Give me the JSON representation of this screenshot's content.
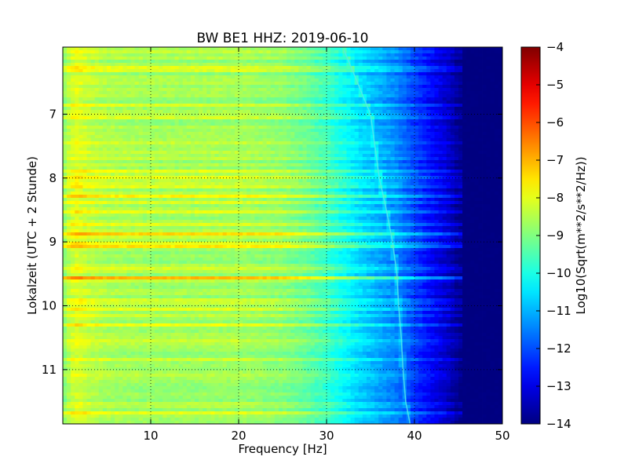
{
  "chart_data": {
    "type": "heatmap",
    "title": "BW BE1 HHZ: 2019-06-10",
    "xlabel": "Frequency [Hz]",
    "ylabel": "Lokalzeit (UTC + 2 Stunde)",
    "xlim": [
      0,
      50
    ],
    "ylim": [
      5.95,
      11.85
    ],
    "y_inverted": true,
    "x_ticks": [
      10,
      20,
      30,
      40,
      50
    ],
    "y_ticks": [
      7,
      8,
      9,
      10,
      11
    ],
    "grid": true,
    "colormap": "jet",
    "colorbar": {
      "label": "Log10(Sqrt(m**2/s**2/Hz))",
      "range": [
        -14,
        -4
      ],
      "ticks": [
        -14,
        -13,
        -12,
        -11,
        -10,
        -9,
        -8,
        -7,
        -6,
        -5,
        -4
      ]
    },
    "spectrum_profile": {
      "frequency_hz": [
        0,
        0.8,
        1.5,
        3,
        5,
        10,
        15,
        20,
        25,
        28,
        30,
        32,
        34,
        36,
        38,
        40,
        42,
        44,
        45,
        50
      ],
      "log10_amplitude": [
        -9.0,
        -8.4,
        -8.1,
        -8.4,
        -8.6,
        -8.7,
        -8.7,
        -8.7,
        -8.9,
        -9.3,
        -9.7,
        -10.2,
        -10.7,
        -11.1,
        -11.5,
        -12.2,
        -12.8,
        -13.4,
        -13.9,
        -14.0
      ]
    },
    "strong_bands_hour": [
      7.88,
      8.3,
      8.88,
      9.05,
      9.55,
      10.3
    ],
    "tonal_line_hz": {
      "hour": [
        6.0,
        6.5,
        7.0,
        7.5,
        8.0,
        8.5,
        9.0,
        9.5,
        10.0,
        10.5,
        11.0,
        11.5,
        11.85
      ],
      "frequency_hz": [
        32.0,
        33.5,
        35.0,
        35.5,
        36.0,
        36.8,
        37.5,
        38.0,
        38.2,
        38.5,
        38.7,
        39.0,
        39.5
      ]
    }
  }
}
